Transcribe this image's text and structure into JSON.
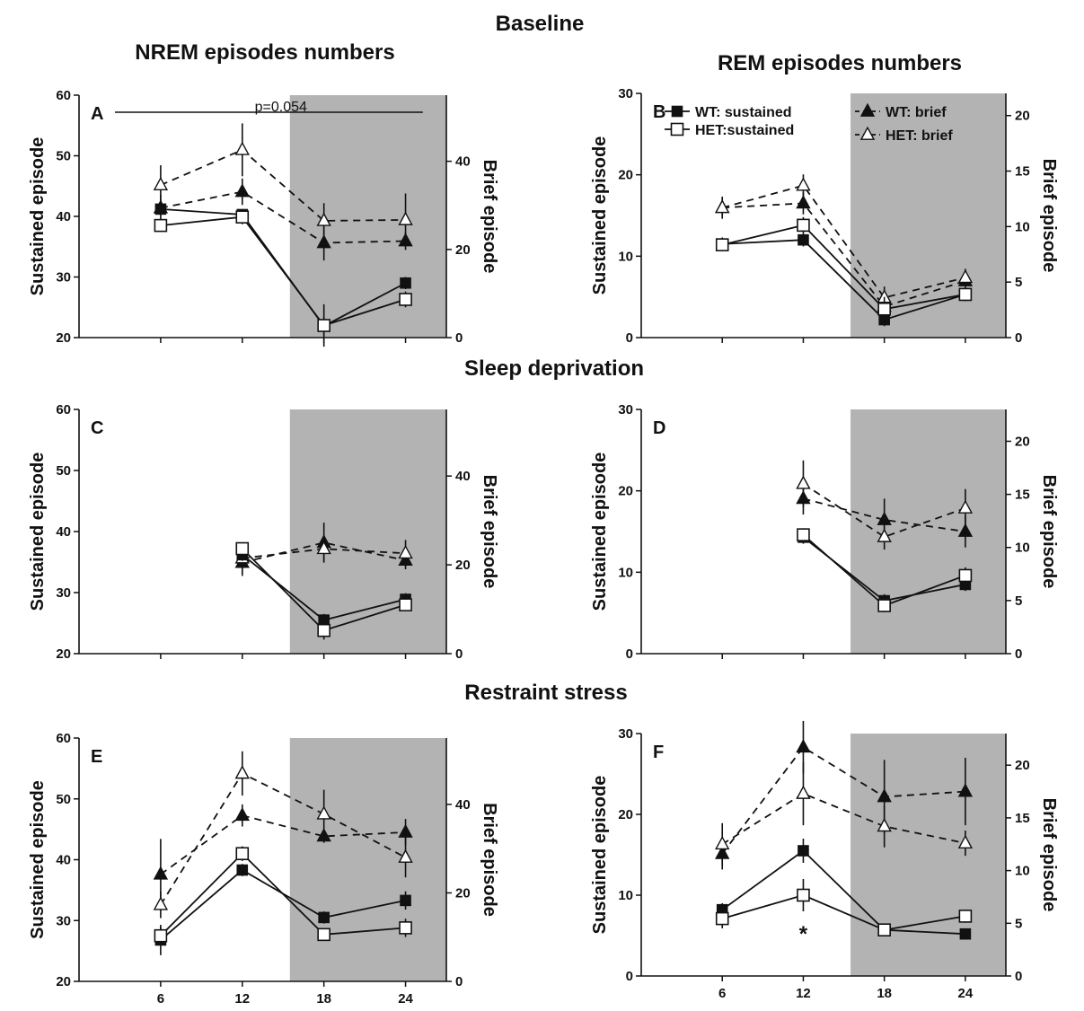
{
  "figure": {
    "section_titles": [
      "Baseline",
      "Sleep deprivation",
      "Restraint stress"
    ],
    "column_titles": [
      "NREM episodes numbers",
      "REM episodes numbers"
    ],
    "colors": {
      "dark_period": "#b3b3b3",
      "ink": "#111111",
      "open_fill": "#ffffff"
    }
  },
  "chart_data": [
    {
      "panel": "A",
      "type": "line",
      "xlabel": "",
      "ylabel": "Sustained episode",
      "y2label": "Brief episode",
      "x": [
        6,
        12,
        18,
        24
      ],
      "xlim": [
        0,
        27
      ],
      "x_ticks": [],
      "dark_period": [
        15.5,
        27
      ],
      "ylim": [
        20,
        60
      ],
      "y_ticks": [
        20,
        30,
        40,
        50,
        60
      ],
      "y2lim": [
        0,
        55
      ],
      "y2_ticks": [
        0,
        20,
        40
      ],
      "annotation": {
        "text": "p=0.054",
        "x_from": 0,
        "x_to": 19
      },
      "series": [
        {
          "name": "WT: sustained",
          "axis": "left",
          "values": [
            41.2,
            40.3,
            21.9,
            29.0
          ],
          "errors": [
            1.0,
            0.8,
            1.5,
            1.0
          ]
        },
        {
          "name": "HET:sustained",
          "axis": "left",
          "values": [
            38.5,
            39.9,
            22.0,
            26.3
          ],
          "errors": [
            0.8,
            1.2,
            3.5,
            1.3
          ]
        },
        {
          "name": "WT: brief",
          "axis": "right",
          "values": [
            29.4,
            33.1,
            21.5,
            21.9
          ],
          "errors": [
            3.0,
            3.0,
            4.0,
            2.0
          ]
        },
        {
          "name": "HET: brief",
          "axis": "right",
          "values": [
            34.6,
            42.6,
            26.5,
            26.7
          ],
          "errors": [
            4.5,
            6.0,
            4.0,
            6.0
          ]
        }
      ]
    },
    {
      "panel": "B",
      "type": "line",
      "xlabel": "",
      "ylabel": "Sustained episode",
      "y2label": "Brief episode",
      "x": [
        6,
        12,
        18,
        24
      ],
      "xlim": [
        0,
        27
      ],
      "x_ticks": [],
      "dark_period": [
        15.5,
        27
      ],
      "ylim": [
        0,
        30
      ],
      "y_ticks": [
        0,
        10,
        20,
        30
      ],
      "y2lim": [
        0,
        22
      ],
      "y2_ticks": [
        0,
        5,
        10,
        15,
        20
      ],
      "series": [
        {
          "name": "WT: sustained",
          "axis": "left",
          "values": [
            11.5,
            12.0,
            2.2,
            5.3
          ],
          "errors": [
            0.8,
            0.8,
            0.8,
            0.8
          ]
        },
        {
          "name": "HET:sustained",
          "axis": "left",
          "values": [
            11.4,
            13.8,
            3.5,
            5.3
          ],
          "errors": [
            0.8,
            1.0,
            1.5,
            0.8
          ]
        },
        {
          "name": "WT: brief",
          "axis": "right",
          "values": [
            11.7,
            12.1,
            2.8,
            5.1
          ],
          "errors": [
            0.8,
            1.0,
            1.0,
            0.8
          ]
        },
        {
          "name": "HET: brief",
          "axis": "right",
          "values": [
            11.7,
            13.7,
            3.6,
            5.4
          ],
          "errors": [
            1.0,
            1.0,
            1.0,
            0.8
          ]
        }
      ]
    },
    {
      "panel": "C",
      "type": "line",
      "xlabel": "",
      "ylabel": "Sustained episode",
      "y2label": "Brief episode",
      "x": [
        12,
        18,
        24
      ],
      "xlim": [
        0,
        27
      ],
      "x_ticks": [],
      "dark_period": [
        15.5,
        27
      ],
      "ylim": [
        20,
        60
      ],
      "y_ticks": [
        20,
        30,
        40,
        50,
        60
      ],
      "y2lim": [
        0,
        55
      ],
      "y2_ticks": [
        0,
        20,
        40
      ],
      "series": [
        {
          "name": "WT: sustained",
          "axis": "left",
          "values": [
            36.2,
            25.5,
            28.9
          ],
          "errors": [
            1.0,
            1.0,
            1.0
          ]
        },
        {
          "name": "HET:sustained",
          "axis": "left",
          "values": [
            37.2,
            23.8,
            28.0
          ],
          "errors": [
            1.0,
            1.5,
            1.0
          ]
        },
        {
          "name": "WT: brief",
          "axis": "right",
          "values": [
            20.5,
            25.0,
            21.0
          ],
          "errors": [
            3.0,
            4.5,
            2.0
          ]
        },
        {
          "name": "HET: brief",
          "axis": "right",
          "values": [
            21.5,
            23.6,
            22.6
          ],
          "errors": [
            3.5,
            3.0,
            3.0
          ]
        }
      ]
    },
    {
      "panel": "D",
      "type": "line",
      "xlabel": "",
      "ylabel": "Sustained episode",
      "y2label": "Brief episode",
      "x": [
        12,
        18,
        24
      ],
      "xlim": [
        0,
        27
      ],
      "x_ticks": [],
      "dark_period": [
        15.5,
        27
      ],
      "ylim": [
        0,
        30
      ],
      "y_ticks": [
        0,
        10,
        20,
        30
      ],
      "y2lim": [
        0,
        23
      ],
      "y2_ticks": [
        0,
        5,
        10,
        15,
        20
      ],
      "series": [
        {
          "name": "WT: sustained",
          "axis": "left",
          "values": [
            14.3,
            6.5,
            8.5
          ],
          "errors": [
            0.8,
            0.8,
            0.8
          ]
        },
        {
          "name": "HET:sustained",
          "axis": "left",
          "values": [
            14.6,
            5.9,
            9.6
          ],
          "errors": [
            0.8,
            0.8,
            1.0
          ]
        },
        {
          "name": "WT: brief",
          "axis": "right",
          "values": [
            14.6,
            12.6,
            11.5
          ],
          "errors": [
            1.5,
            2.0,
            1.5
          ]
        },
        {
          "name": "HET: brief",
          "axis": "right",
          "values": [
            16.0,
            11.0,
            13.7
          ],
          "errors": [
            2.2,
            1.2,
            1.8
          ]
        }
      ]
    },
    {
      "panel": "E",
      "type": "line",
      "xlabel": "",
      "ylabel": "Sustained episode",
      "y2label": "Brief episode",
      "x": [
        6,
        12,
        18,
        24
      ],
      "xlim": [
        0,
        27
      ],
      "x_ticks": [
        6,
        12,
        18,
        24
      ],
      "dark_period": [
        15.5,
        27
      ],
      "ylim": [
        20,
        60
      ],
      "y_ticks": [
        20,
        30,
        40,
        50,
        60
      ],
      "y2lim": [
        0,
        55
      ],
      "y2_ticks": [
        0,
        20,
        40
      ],
      "series": [
        {
          "name": "WT: sustained",
          "axis": "left",
          "values": [
            26.8,
            38.3,
            30.5,
            33.3
          ],
          "errors": [
            2.5,
            1.0,
            1.0,
            1.5
          ]
        },
        {
          "name": "HET:sustained",
          "axis": "left",
          "values": [
            27.5,
            41.0,
            27.7,
            28.8
          ],
          "errors": [
            1.5,
            1.2,
            1.0,
            1.5
          ]
        },
        {
          "name": "WT: brief",
          "axis": "right",
          "values": [
            24.2,
            37.5,
            32.8,
            33.7
          ],
          "errors": [
            8.0,
            2.5,
            1.5,
            3.0
          ]
        },
        {
          "name": "HET: brief",
          "axis": "right",
          "values": [
            17.3,
            47.0,
            37.8,
            28.0
          ],
          "errors": [
            3.0,
            5.0,
            5.5,
            4.5
          ]
        }
      ]
    },
    {
      "panel": "F",
      "type": "line",
      "xlabel": "",
      "ylabel": "Sustained episode",
      "y2label": "Brief episode",
      "x": [
        6,
        12,
        18,
        24
      ],
      "xlim": [
        0,
        27
      ],
      "x_ticks": [
        6,
        12,
        18,
        24
      ],
      "dark_period": [
        15.5,
        27
      ],
      "ylim": [
        0,
        30
      ],
      "y_ticks": [
        0,
        10,
        20,
        30
      ],
      "y2lim": [
        0,
        23
      ],
      "y2_ticks": [
        0,
        5,
        10,
        15,
        20
      ],
      "annotation": {
        "text": "*",
        "x": 12,
        "y": 5
      },
      "series": [
        {
          "name": "WT: sustained",
          "axis": "left",
          "values": [
            8.2,
            15.5,
            5.7,
            5.2
          ],
          "errors": [
            0.8,
            1.5,
            0.6,
            0.6
          ]
        },
        {
          "name": "HET:sustained",
          "axis": "left",
          "values": [
            7.1,
            10.0,
            5.7,
            7.4
          ],
          "errors": [
            1.2,
            2.0,
            0.6,
            0.8
          ]
        },
        {
          "name": "WT: brief",
          "axis": "right",
          "values": [
            11.6,
            21.7,
            17.0,
            17.5
          ],
          "errors": [
            1.5,
            2.5,
            3.5,
            3.2
          ]
        },
        {
          "name": "HET: brief",
          "axis": "right",
          "values": [
            12.5,
            17.3,
            14.2,
            12.6
          ],
          "errors": [
            2.0,
            3.0,
            2.0,
            1.2
          ]
        }
      ]
    }
  ]
}
